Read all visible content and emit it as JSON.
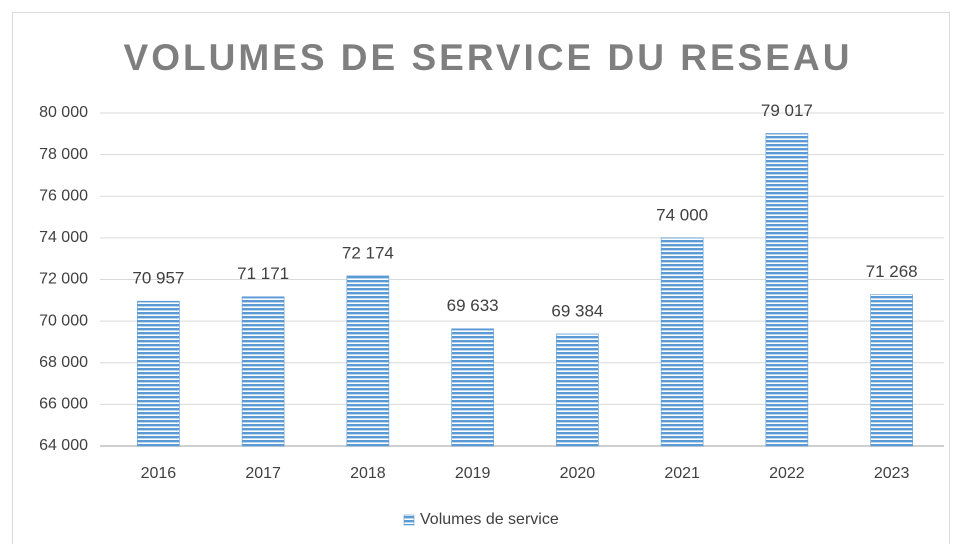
{
  "chart_data": {
    "type": "bar",
    "title": "VOLUMES DE SERVICE DU RESEAU",
    "categories": [
      "2016",
      "2017",
      "2018",
      "2019",
      "2020",
      "2021",
      "2022",
      "2023"
    ],
    "series": [
      {
        "name": "Volumes de service",
        "color": "#5b9bd5",
        "values": [
          70957,
          71171,
          72174,
          69633,
          69384,
          74000,
          79017,
          71268
        ],
        "value_labels": [
          "70 957",
          "71 171",
          "72 174",
          "69 633",
          "69 384",
          "74 000",
          "79 017",
          "71 268"
        ]
      }
    ],
    "ylim": [
      64000,
      80000
    ],
    "yticks": [
      {
        "value": 64000,
        "label": "64 000"
      },
      {
        "value": 66000,
        "label": "66 000"
      },
      {
        "value": 68000,
        "label": "68 000"
      },
      {
        "value": 70000,
        "label": "70 000"
      },
      {
        "value": 72000,
        "label": "72 000"
      },
      {
        "value": 74000,
        "label": "74 000"
      },
      {
        "value": 76000,
        "label": "76 000"
      },
      {
        "value": 78000,
        "label": "78 000"
      },
      {
        "value": 80000,
        "label": "80 000"
      }
    ],
    "grid": true,
    "legend": "bottom"
  }
}
